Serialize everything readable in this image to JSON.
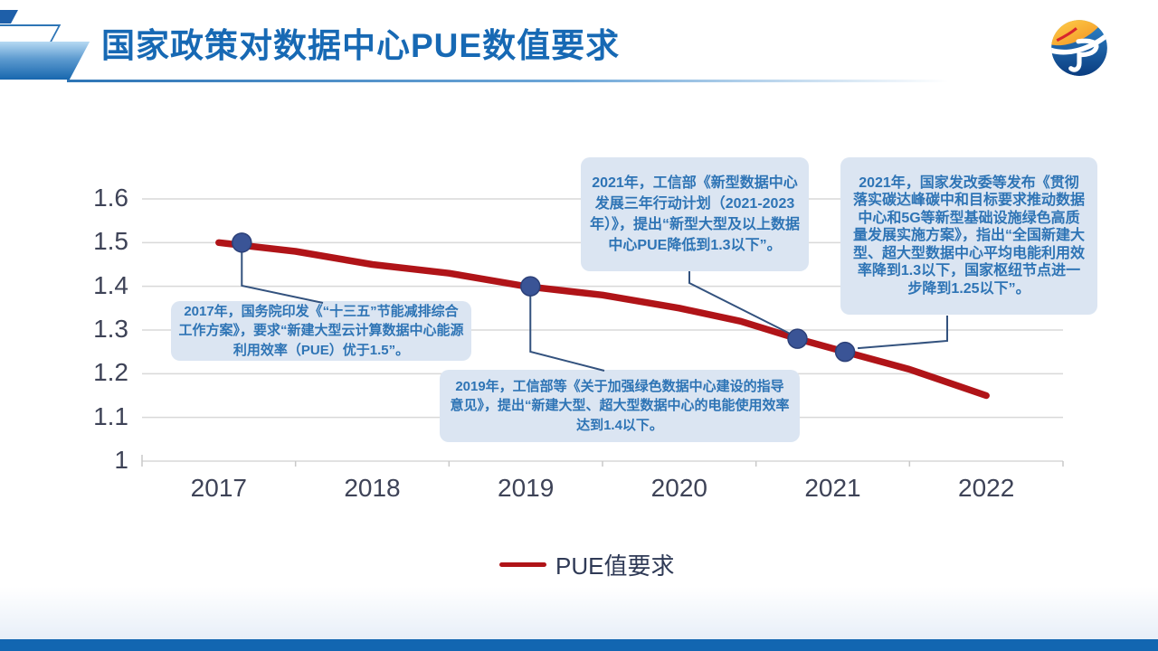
{
  "header": {
    "title": "国家政策对数据中心PUE数值要求",
    "logo_icon": "jp-globe-logo"
  },
  "colors": {
    "title-blue": "#1769b4",
    "accent-blue": "#2e75b6",
    "line-red": "#b01418",
    "marker-navy": "#3a5496",
    "leader-blue": "#33527e",
    "callout-bg": "#dbe5f2",
    "callout-text": "#2e74b5",
    "grid-gray": "#d9d9d9",
    "axis-label": "#3e4357",
    "legend-text": "#2f3a56",
    "footer-blue": "#1266b1"
  },
  "chart_data": {
    "type": "line",
    "title": "国家政策对数据中心PUE数值要求",
    "xlabel": "",
    "ylabel": "",
    "grid": true,
    "legend_position": "bottom",
    "categories": [
      "2017",
      "2018",
      "2019",
      "2020",
      "2021",
      "2022"
    ],
    "yticks": [
      1,
      1.1,
      1.2,
      1.3,
      1.4,
      1.5,
      1.6
    ],
    "ytick_labels": [
      "1",
      "1.1",
      "1.2",
      "1.3",
      "1.4",
      "1.5",
      "1.6"
    ],
    "ylim": [
      1.0,
      1.6
    ],
    "series": [
      {
        "name": "PUE值要求",
        "x": [
          2017,
          2017.5,
          2018,
          2018.5,
          2019,
          2019.5,
          2020,
          2020.4,
          2020.77,
          2021.08,
          2021.5,
          2022
        ],
        "values": [
          1.5,
          1.48,
          1.45,
          1.43,
          1.4,
          1.38,
          1.35,
          1.32,
          1.28,
          1.25,
          1.21,
          1.15
        ]
      }
    ],
    "markers": [
      {
        "x": 2017.15,
        "value": 1.5
      },
      {
        "x": 2019.03,
        "value": 1.4
      },
      {
        "x": 2020.77,
        "value": 1.28
      },
      {
        "x": 2021.08,
        "value": 1.25
      }
    ]
  },
  "legend": {
    "label": "PUE值要求"
  },
  "annotations": [
    {
      "text": "2017年，国务院印发《“十三五”节能减排综合工作方案》，要求“新建大型云计算数据中心能源利用效率（PUE）优于1.5”。"
    },
    {
      "text": "2019年，工信部等《关于加强绿色数据中心建设的指导意见》，提出“新建大型、超大型数据中心的电能使用效率达到1.4以下。"
    },
    {
      "text": "2021年，工信部《新型数据中心发展三年行动计划（2021-2023年）》，提出“新型大型及以上数据中心PUE降低到1.3以下”。"
    },
    {
      "text": "2021年，国家发改委等发布《贯彻落实碳达峰碳中和目标要求推动数据中心和5G等新型基础设施绿色高质量发展实施方案》，指出“全国新建大型、超大型数据中心平均电能利用效率降到1.3以下，国家枢纽节点进一步降到1.25以下”。"
    }
  ]
}
